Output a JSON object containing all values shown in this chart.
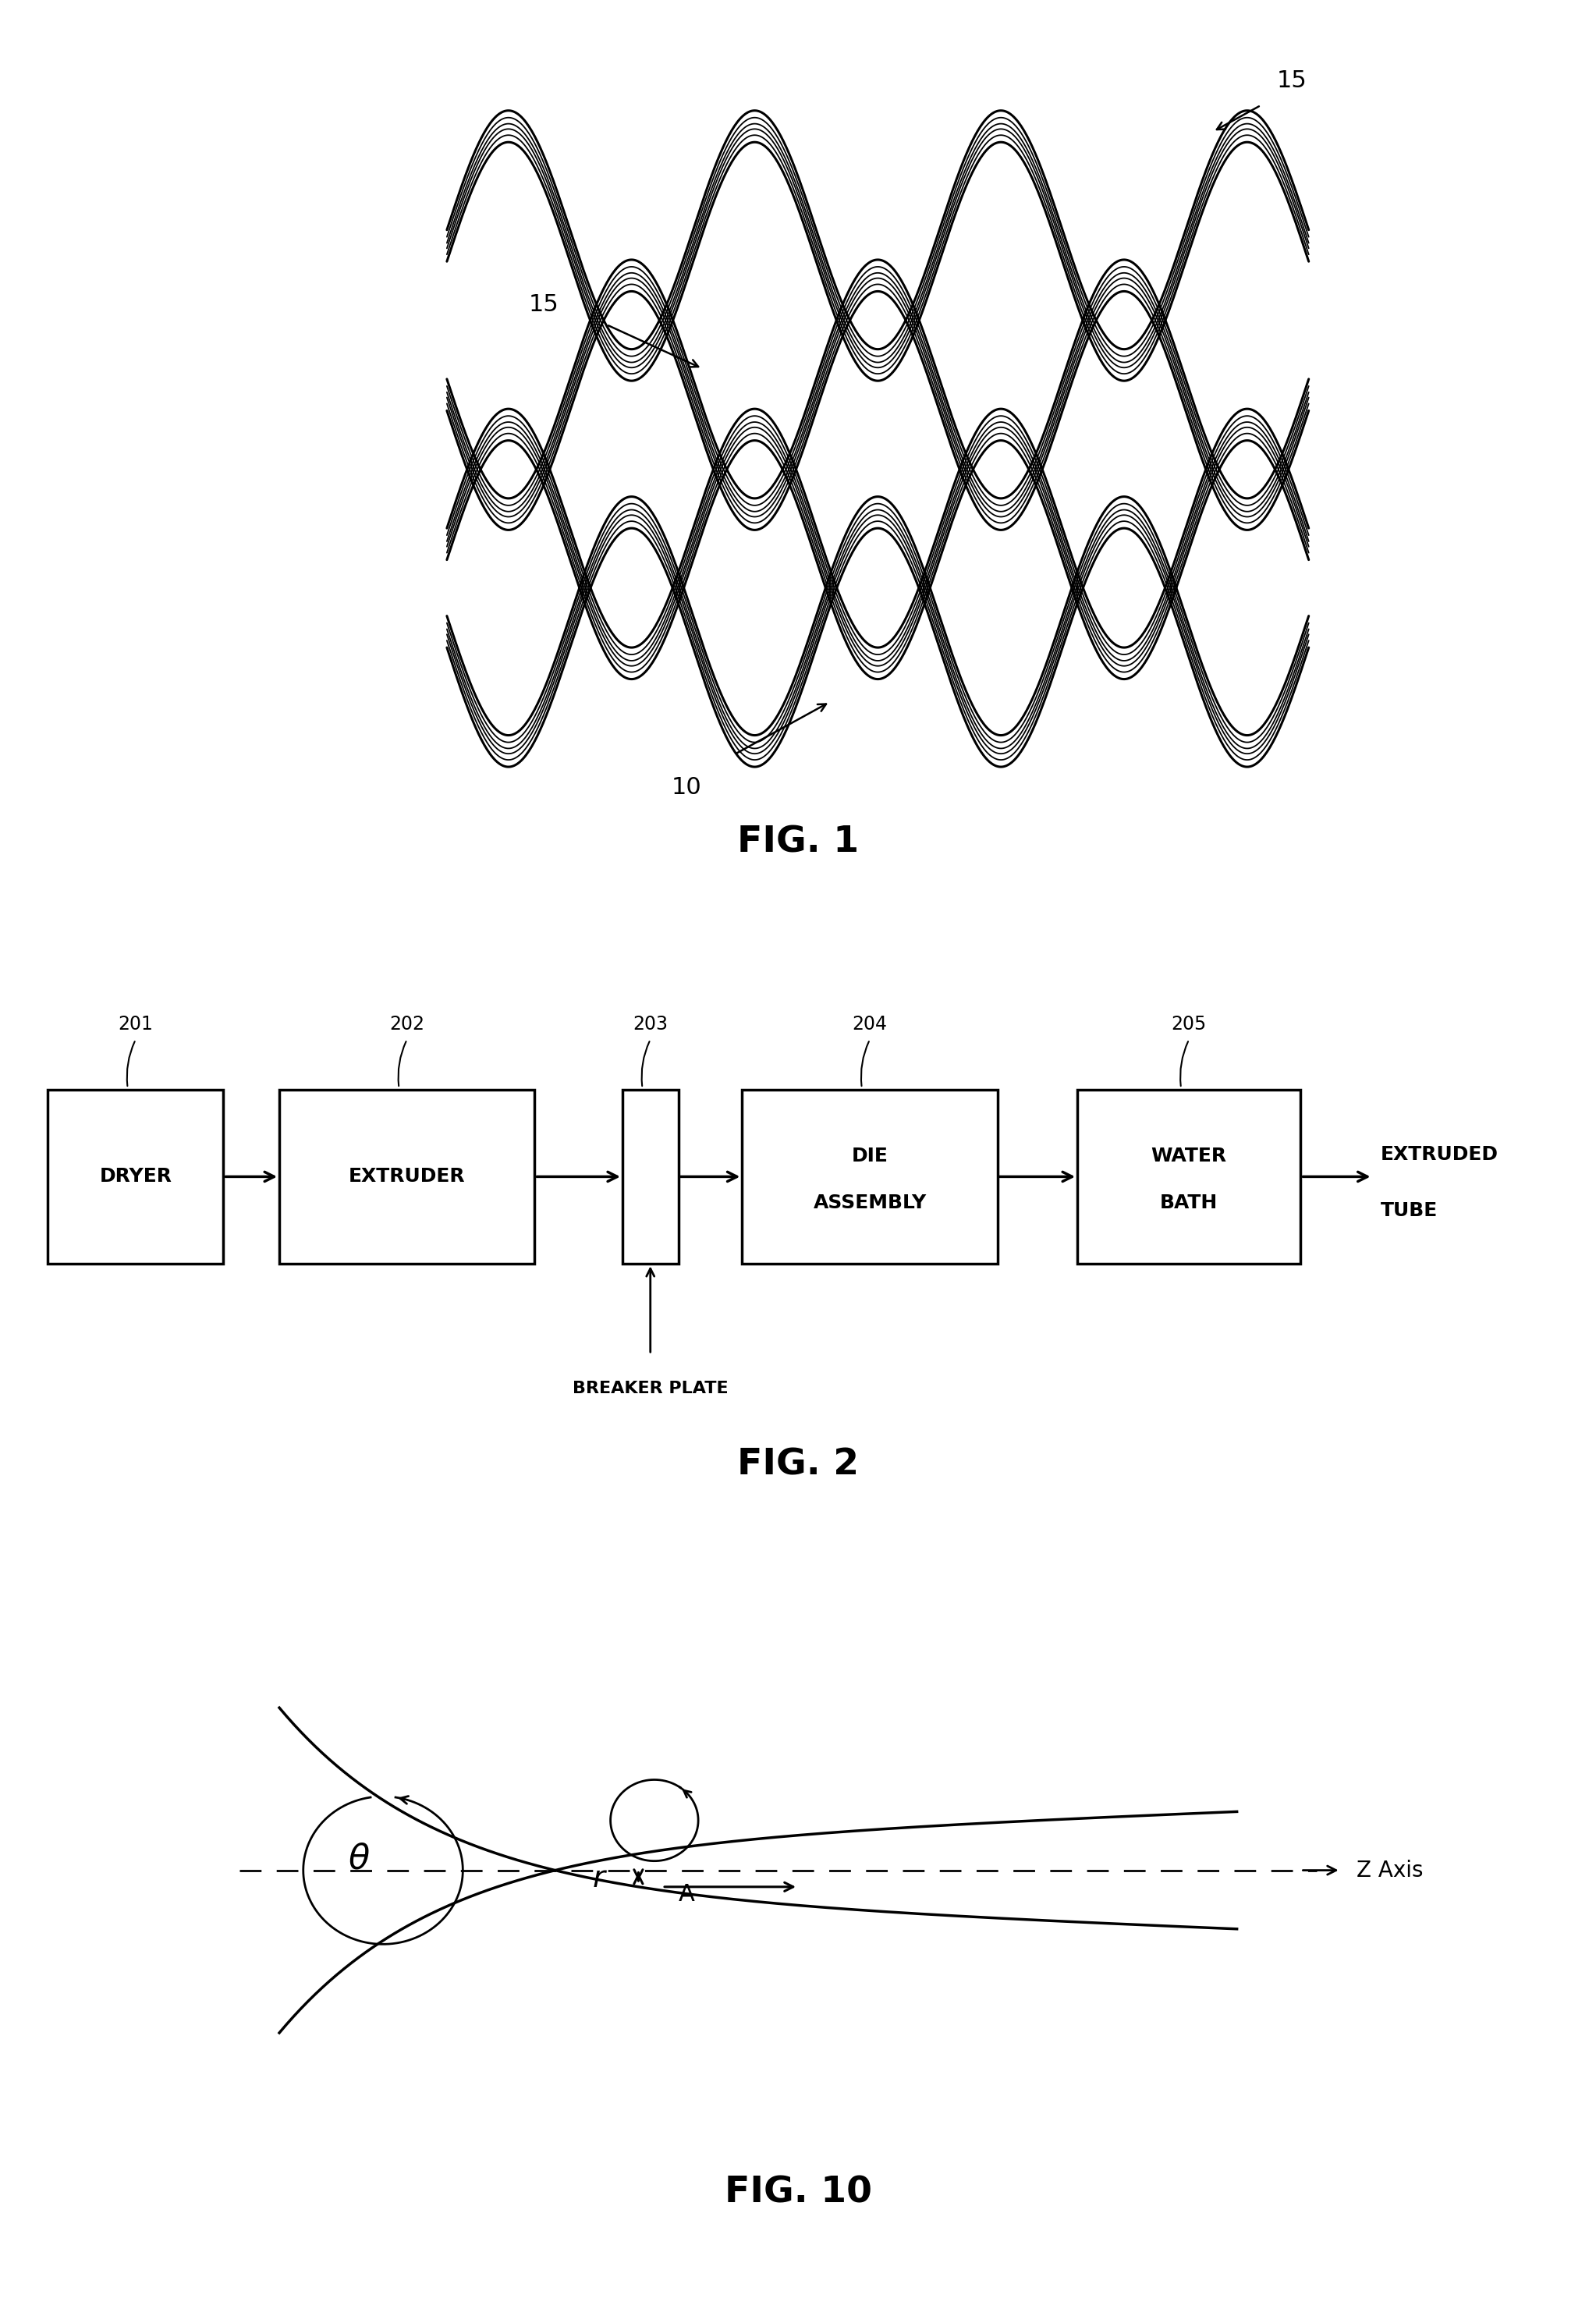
{
  "bg_color": "#ffffff",
  "fig1": {
    "fig_label": "FIG. 1"
  },
  "fig2": {
    "fig_label": "FIG. 2"
  },
  "fig10": {
    "fig_label": "FIG. 10"
  }
}
